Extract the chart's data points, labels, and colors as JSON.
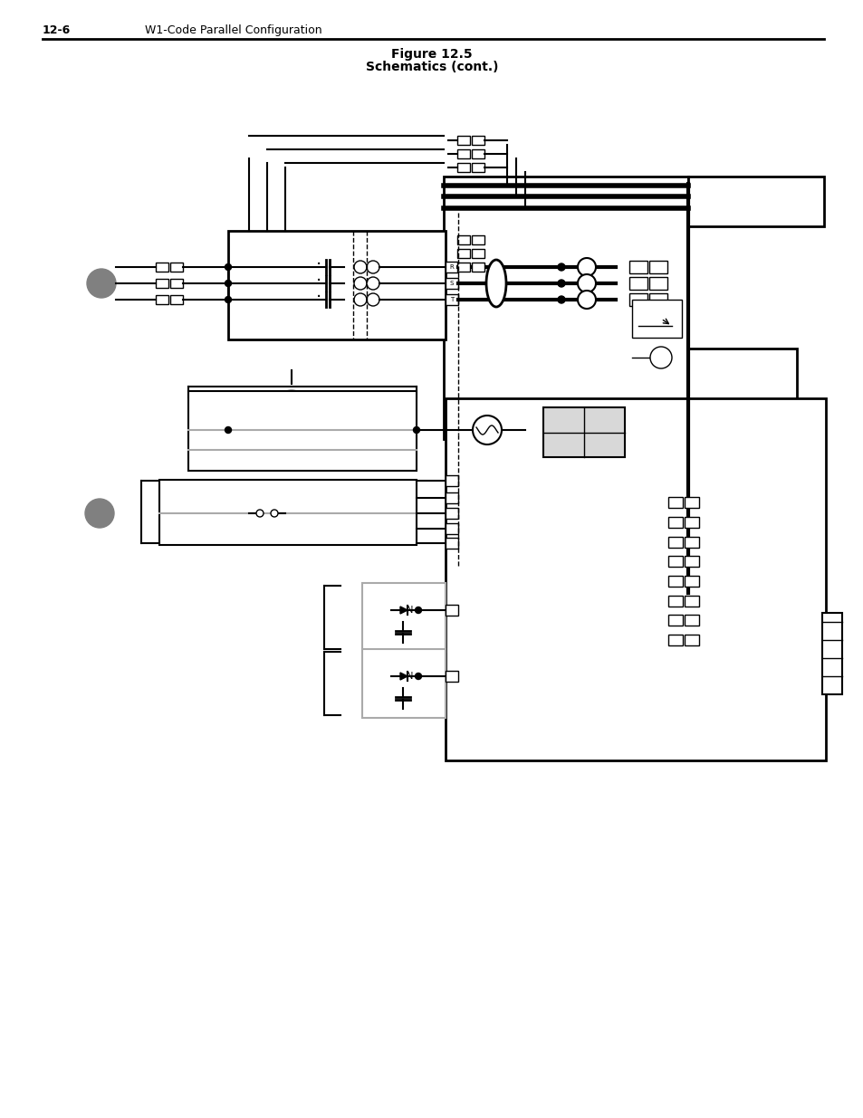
{
  "page_header_left": "12-6",
  "page_header_right": "W1-Code Parallel Configuration",
  "figure_title_line1": "Figure 12.5",
  "figure_title_line2": "Schematics (cont.)",
  "bg_color": "#ffffff",
  "line_color": "#000000",
  "gray_circle_color": "#808080",
  "light_line_color": "#aaaaaa",
  "fig_width": 9.54,
  "fig_height": 12.35
}
